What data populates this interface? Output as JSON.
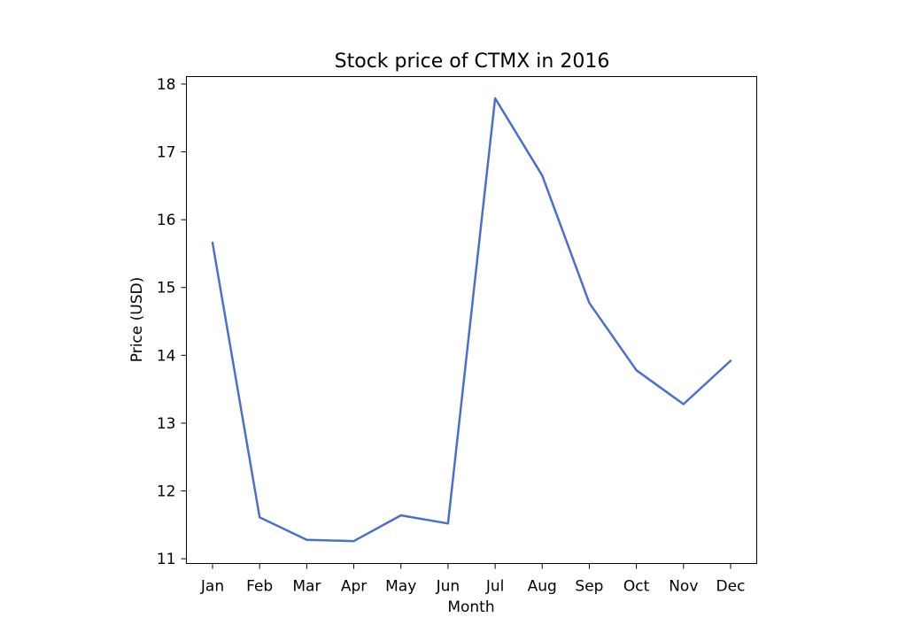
{
  "chart_data": {
    "type": "line",
    "title": "Stock price of CTMX in 2016",
    "xlabel": "Month",
    "ylabel": "Price (USD)",
    "categories": [
      "Jan",
      "Feb",
      "Mar",
      "Apr",
      "May",
      "Jun",
      "Jul",
      "Aug",
      "Sep",
      "Oct",
      "Nov",
      "Dec"
    ],
    "series": [
      {
        "color": "#4c6fcc",
        "values": [
          15.66,
          11.61,
          11.28,
          11.26,
          11.64,
          11.52,
          17.79,
          16.65,
          14.77,
          13.78,
          13.28,
          13.92
        ]
      }
    ],
    "yticks": [
      11,
      12,
      13,
      14,
      15,
      16,
      17,
      18
    ],
    "ylim": [
      10.93,
      18.11
    ],
    "grid": false,
    "legend": "none"
  }
}
